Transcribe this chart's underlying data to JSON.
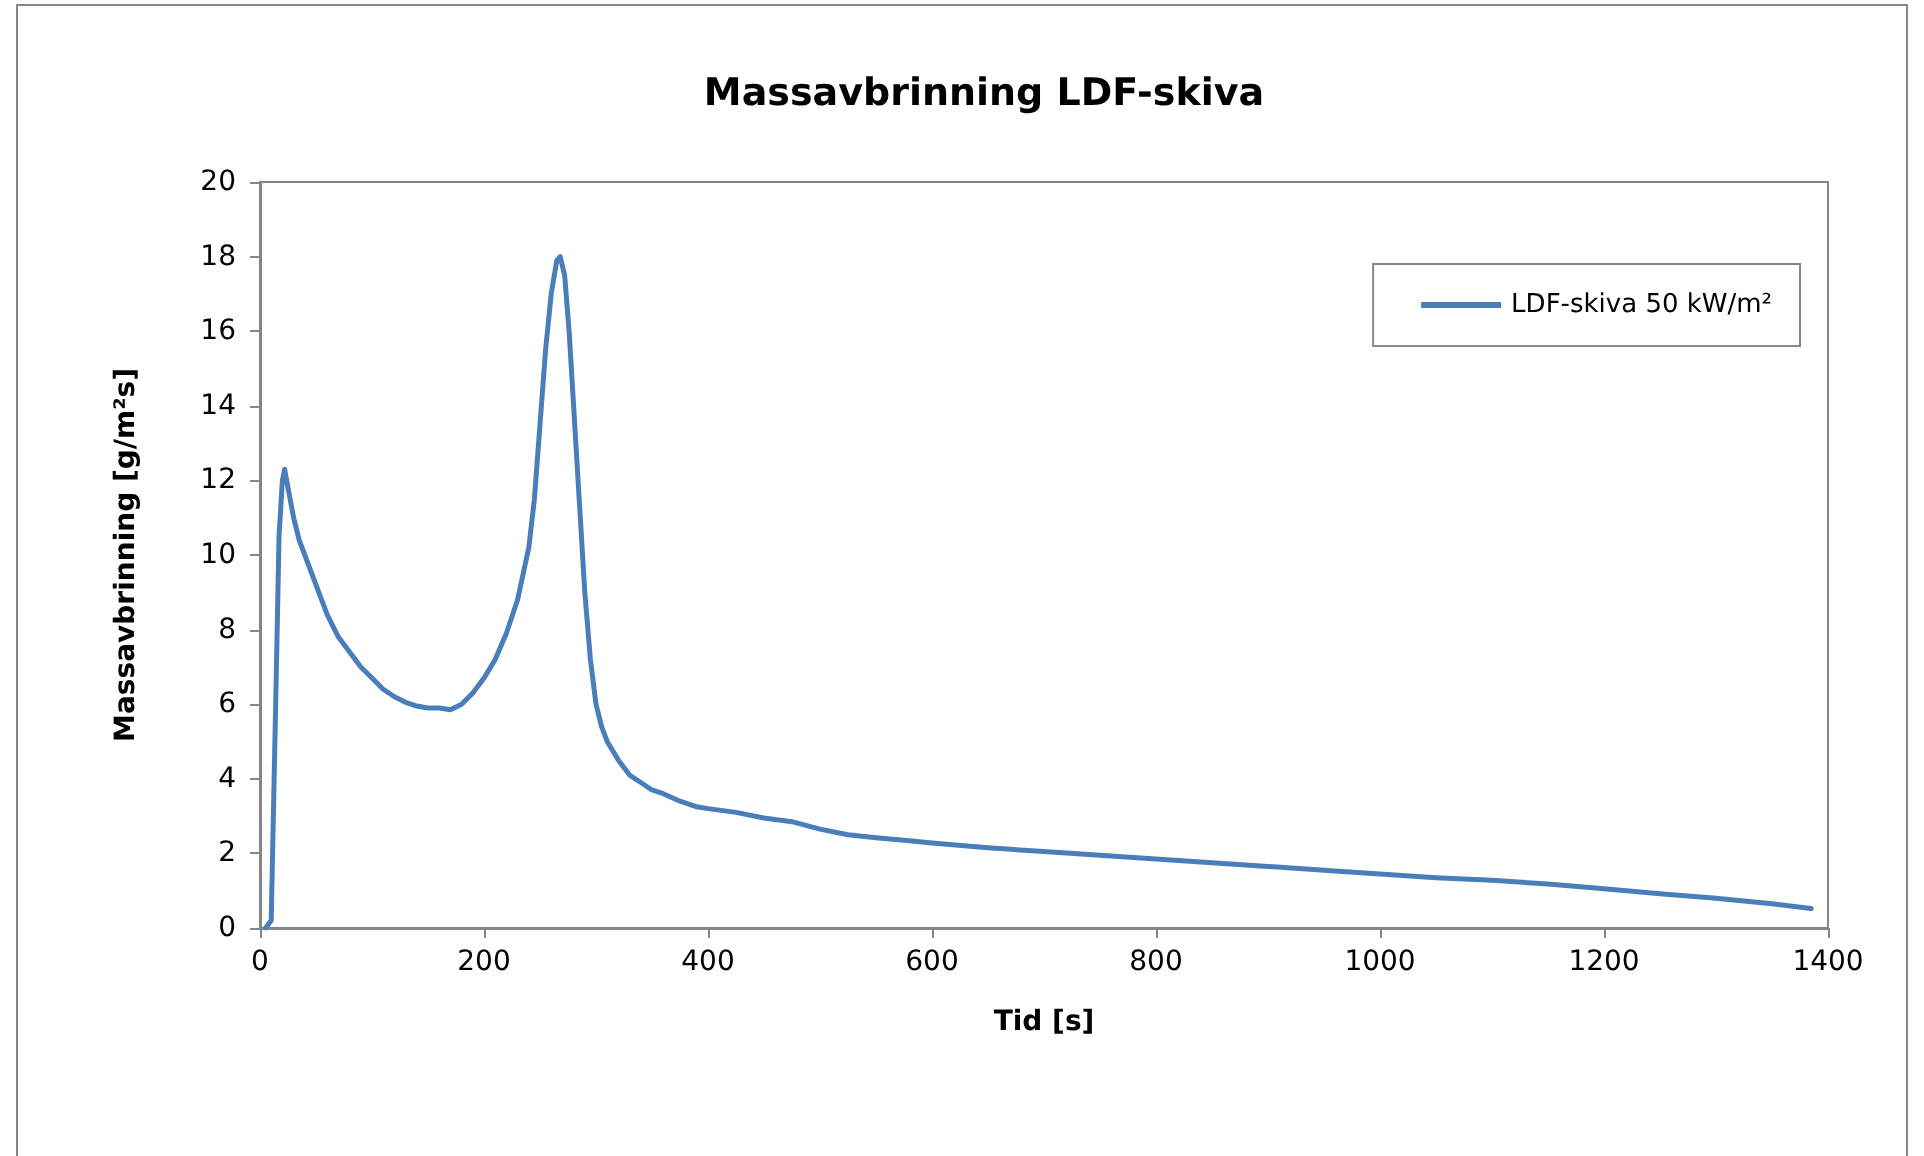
{
  "chart_data": {
    "type": "line",
    "title": "Massavbrinning LDF-skiva",
    "xlabel": "Tid [s]",
    "ylabel": "Massavbrinning [g/m²s]",
    "xlim": [
      0,
      1400
    ],
    "xticks": [
      0,
      200,
      400,
      600,
      800,
      1000,
      1200,
      1400
    ],
    "ylim": [
      0,
      20
    ],
    "yticks": [
      0,
      2,
      4,
      6,
      8,
      10,
      12,
      14,
      16,
      18,
      20
    ],
    "grid": false,
    "legend": "top right",
    "marker": "none",
    "line_style": "solid",
    "series": [
      {
        "name": "LDF-skiva 50 kW/m²",
        "color": "#4a7ebb",
        "x": [
          5,
          10,
          14,
          17,
          20,
          22,
          25,
          30,
          35,
          40,
          50,
          60,
          70,
          80,
          90,
          100,
          110,
          120,
          130,
          140,
          150,
          160,
          170,
          180,
          190,
          200,
          210,
          220,
          230,
          240,
          245,
          250,
          255,
          260,
          265,
          268,
          272,
          276,
          280,
          285,
          290,
          295,
          300,
          305,
          310,
          320,
          330,
          340,
          350,
          360,
          375,
          390,
          400,
          425,
          450,
          475,
          500,
          525,
          550,
          575,
          600,
          650,
          700,
          750,
          800,
          850,
          900,
          950,
          1000,
          1050,
          1100,
          1150,
          1200,
          1250,
          1300,
          1350,
          1385
        ],
        "values": [
          0,
          0.2,
          6,
          10.5,
          12,
          12.3,
          11.8,
          11,
          10.4,
          10,
          9.2,
          8.4,
          7.8,
          7.4,
          7,
          6.7,
          6.4,
          6.2,
          6.05,
          5.95,
          5.9,
          5.9,
          5.85,
          6,
          6.3,
          6.7,
          7.2,
          7.9,
          8.8,
          10.2,
          11.5,
          13.5,
          15.5,
          17,
          17.9,
          18,
          17.5,
          16,
          14,
          11.5,
          9,
          7.2,
          6,
          5.4,
          5,
          4.5,
          4.1,
          3.9,
          3.7,
          3.6,
          3.4,
          3.25,
          3.2,
          3.1,
          2.95,
          2.85,
          2.65,
          2.5,
          2.42,
          2.35,
          2.28,
          2.15,
          2.05,
          1.95,
          1.85,
          1.75,
          1.65,
          1.55,
          1.45,
          1.35,
          1.28,
          1.18,
          1.05,
          0.92,
          0.8,
          0.65,
          0.52
        ]
      }
    ]
  }
}
